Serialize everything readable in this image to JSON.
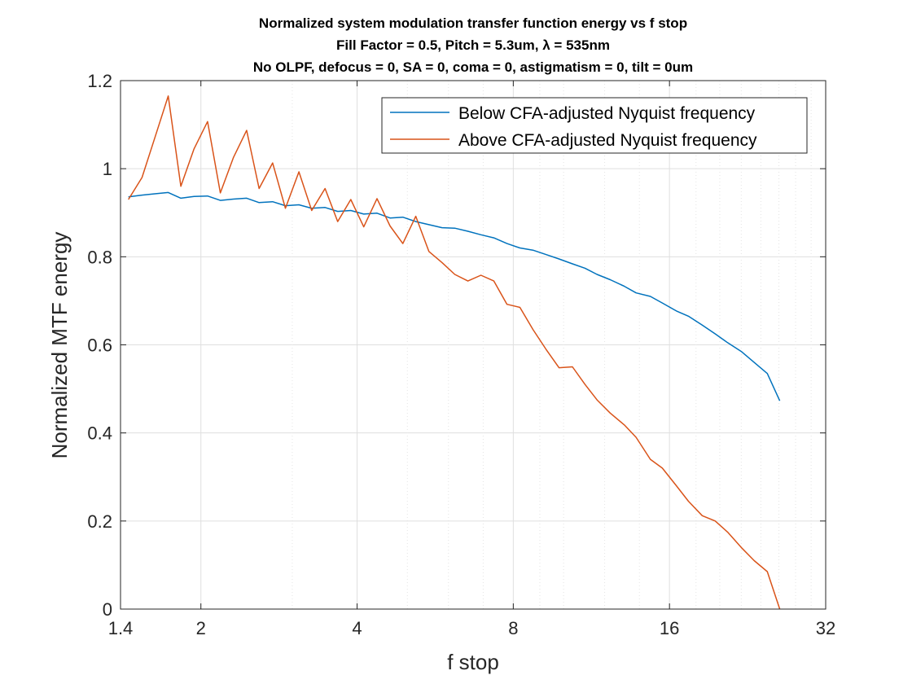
{
  "chart_data": {
    "type": "line",
    "title_lines": [
      "Normalized system modulation transfer function energy vs f stop",
      "Fill Factor = 0.5, Pitch = 5.3um, λ = 535nm",
      "No OLPF, defocus = 0, SA = 0, coma = 0, astigmatism = 0, tilt = 0um"
    ],
    "xlabel": "f stop",
    "ylabel": "Normalized MTF energy",
    "xscale": "log",
    "xlim": [
      1.4,
      32
    ],
    "ylim": [
      0,
      1.2
    ],
    "xticks": [
      1.4,
      2,
      4,
      8,
      16,
      32
    ],
    "xtick_labels": [
      "1.4",
      "2",
      "4",
      "8",
      "16",
      "32"
    ],
    "yticks": [
      0,
      0.2,
      0.4,
      0.6,
      0.8,
      1,
      1.2
    ],
    "ytick_labels": [
      "0",
      "0.2",
      "0.4",
      "0.6",
      "0.8",
      "1",
      "1.2"
    ],
    "grid": true,
    "legend_position": "top-right",
    "series": [
      {
        "name": "Below CFA-adjusted Nyquist frequency",
        "color": "#0072BD",
        "x": [
          1.45,
          1.54,
          1.63,
          1.73,
          1.83,
          1.94,
          2.06,
          2.18,
          2.31,
          2.45,
          2.59,
          2.75,
          2.91,
          3.09,
          3.27,
          3.47,
          3.67,
          3.89,
          4.12,
          4.37,
          4.63,
          4.9,
          5.19,
          5.5,
          5.83,
          6.17,
          6.54,
          6.93,
          7.34,
          7.78,
          8.24,
          8.73,
          9.25,
          9.8,
          10.4,
          11.0,
          11.6,
          12.3,
          13.1,
          13.8,
          14.7,
          15.5,
          16.5,
          17.4,
          18.5,
          19.6,
          20.7,
          22.0,
          23.3,
          24.7,
          26.1
        ],
        "values": [
          0.936,
          0.94,
          0.943,
          0.946,
          0.933,
          0.937,
          0.938,
          0.928,
          0.931,
          0.933,
          0.923,
          0.925,
          0.916,
          0.918,
          0.91,
          0.912,
          0.903,
          0.905,
          0.897,
          0.899,
          0.888,
          0.89,
          0.88,
          0.873,
          0.866,
          0.865,
          0.858,
          0.85,
          0.843,
          0.83,
          0.82,
          0.815,
          0.805,
          0.795,
          0.784,
          0.774,
          0.76,
          0.748,
          0.733,
          0.718,
          0.71,
          0.695,
          0.677,
          0.665,
          0.645,
          0.625,
          0.605,
          0.585,
          0.56,
          0.535,
          0.473
        ]
      },
      {
        "name": "Above CFA-adjusted Nyquist frequency",
        "color": "#D95319",
        "x": [
          1.45,
          1.54,
          1.63,
          1.73,
          1.83,
          1.94,
          2.06,
          2.18,
          2.31,
          2.45,
          2.59,
          2.75,
          2.91,
          3.09,
          3.27,
          3.47,
          3.67,
          3.89,
          4.12,
          4.37,
          4.63,
          4.9,
          5.19,
          5.5,
          5.83,
          6.17,
          6.54,
          6.93,
          7.34,
          7.78,
          8.24,
          8.73,
          9.25,
          9.8,
          10.4,
          11.0,
          11.6,
          12.3,
          13.1,
          13.8,
          14.7,
          15.5,
          16.5,
          17.4,
          18.5,
          19.6,
          20.7,
          22.0,
          23.3,
          24.7,
          26.1
        ],
        "values": [
          0.93,
          0.98,
          1.07,
          1.165,
          0.96,
          1.045,
          1.107,
          0.945,
          1.025,
          1.087,
          0.955,
          1.013,
          0.91,
          0.993,
          0.905,
          0.955,
          0.88,
          0.93,
          0.868,
          0.932,
          0.87,
          0.83,
          0.892,
          0.812,
          0.787,
          0.76,
          0.745,
          0.758,
          0.745,
          0.692,
          0.685,
          0.635,
          0.59,
          0.548,
          0.55,
          0.51,
          0.475,
          0.445,
          0.418,
          0.39,
          0.34,
          0.32,
          0.28,
          0.245,
          0.212,
          0.2,
          0.175,
          0.14,
          0.11,
          0.085,
          0.0
        ]
      }
    ]
  }
}
